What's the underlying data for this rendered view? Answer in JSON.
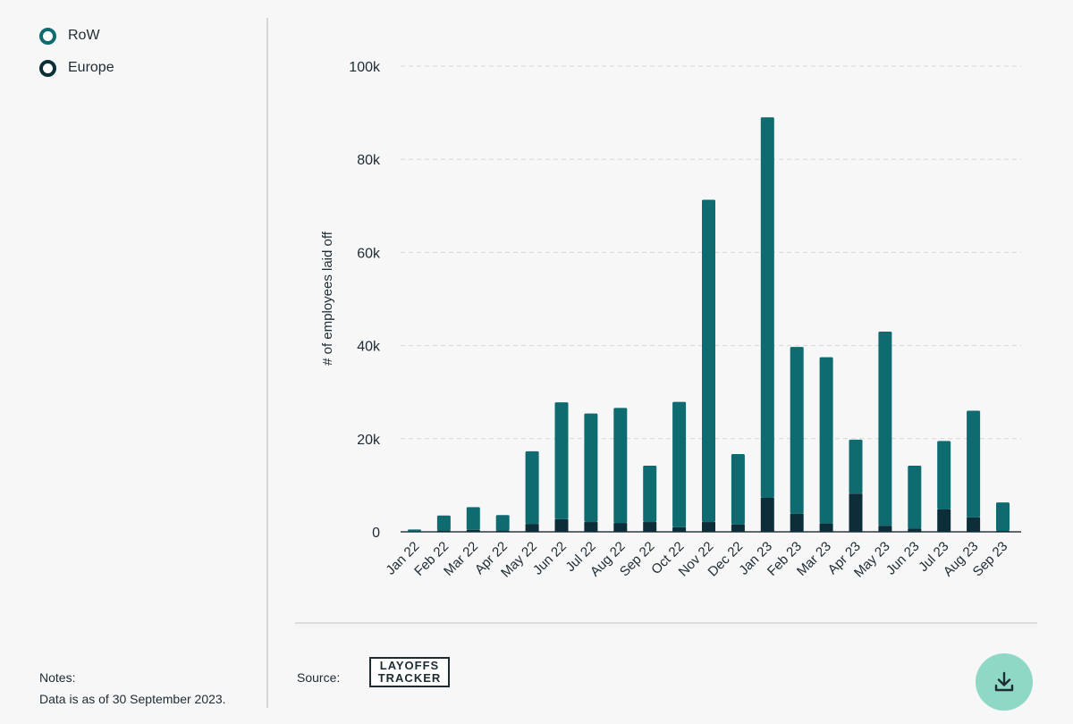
{
  "legend": {
    "items": [
      {
        "label": "RoW",
        "color": "#0e6b70"
      },
      {
        "label": "Europe",
        "color": "#0b2e38"
      }
    ]
  },
  "notes": {
    "title": "Notes:",
    "text": "Data is as of 30 September 2023."
  },
  "source": {
    "label": "Source:",
    "logo_line1": "LAYOFFS",
    "logo_line2": "TRACKER"
  },
  "download": {
    "icon": "download-icon"
  },
  "chart_data": {
    "type": "bar",
    "stacked": true,
    "ylabel": "# of employees laid off",
    "ylim": [
      0,
      100000
    ],
    "yticks": [
      0,
      20000,
      40000,
      60000,
      80000,
      100000
    ],
    "ytick_labels": [
      "0",
      "20k",
      "40k",
      "60k",
      "80k",
      "100k"
    ],
    "grid": true,
    "legend_position": "top-left",
    "categories": [
      "Jan 22",
      "Feb 22",
      "Mar 22",
      "Apr 22",
      "May 22",
      "Jun 22",
      "Jul 22",
      "Aug 22",
      "Sep 22",
      "Oct 22",
      "Nov 22",
      "Dec 22",
      "Jan 23",
      "Feb 23",
      "Mar 23",
      "Apr 23",
      "May 23",
      "Jun 23",
      "Jul 23",
      "Aug 23",
      "Sep 23"
    ],
    "series": [
      {
        "name": "Europe",
        "color": "#0b2e38",
        "values": [
          100,
          300,
          400,
          300,
          1700,
          2700,
          2100,
          1900,
          2100,
          1000,
          2100,
          1600,
          7300,
          3900,
          1800,
          8200,
          1300,
          700,
          4800,
          3100,
          200
        ]
      },
      {
        "name": "RoW",
        "color": "#0e6b70",
        "values": [
          400,
          3200,
          4900,
          3300,
          15600,
          25100,
          23300,
          24700,
          12100,
          26900,
          69200,
          15100,
          81700,
          35800,
          35700,
          11600,
          41700,
          13500,
          14700,
          22900,
          6100
        ]
      }
    ]
  }
}
